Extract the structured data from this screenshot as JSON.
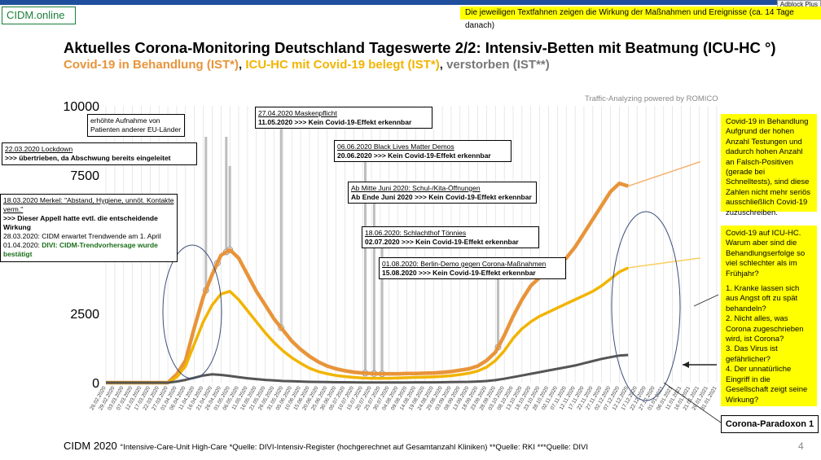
{
  "header": {
    "brand": "CIDM.online",
    "adblock_label": "Adblock Plus",
    "top_note": "Die jeweiligen Textfahnen zeigen die Wirkung der Maßnahmen und Ereignisse (ca. 14 Tage danach)",
    "title": "Aktuelles Corona-Monitoring Deutschland Tageswerte 2/2: Intensiv-Betten mit Beatmung (ICU-HC °)",
    "subtitle_1": "Covid-19 in Behandlung (IST*)",
    "subtitle_sep_1": ", ",
    "subtitle_2": "ICU-HC mit Covid-19 belegt (IST*)",
    "subtitle_sep_2": ", ",
    "subtitle_3": "verstorben (IST**)",
    "credit": "Traffic-Analyzing powered by ROMICO"
  },
  "annotations": {
    "lockdown": {
      "line1": "22.03.2020 Lockdown",
      "line2": ">>> übertrieben, da Abschwung bereits eingeleitet"
    },
    "eu_patients": {
      "text": "erhöhte Aufnahme von Patienten anderer EU-Länder"
    },
    "merkel": {
      "line1": "18.03.2020 Merkel: \"Abstand, Hygiene, unnöt. Kontakte verm.\"",
      "line2": ">>> Dieser Appell hatte evtl. die entscheidende Wirkung",
      "line3": "28.03.2020: CIDM erwartet Trendwende am 1. April",
      "line4_prefix": "01.04.2020: ",
      "line4_green": "DIVI: CIDM-Trendvorhersage wurde bestätigt"
    },
    "mask": {
      "line1": "27.04.2020 Maskenpflicht",
      "line2": "11.05.2020 >>> Kein Covid-19-Effekt erkennbar"
    },
    "blm": {
      "line1": "06.06.2020 Black Lives Matter Demos",
      "line2": "20.06.2020 >>> Kein Covid-19-Effekt erkennbar"
    },
    "school": {
      "line1": "Ab Mitte Juni 2020: Schul-/Kita-Öffnungen",
      "line2": "Ab Ende Juni 2020 >>> Kein Covid-19-Effekt erkennbar"
    },
    "toennies": {
      "line1": "18.06.2020: Schlachthof Tönnies",
      "line2": "02.07.2020 >>> Kein Covid-19-Effekt erkennbar"
    },
    "berlin": {
      "line1": "01.08.2020: Berlin-Demo gegen Corona-Maßnahmen",
      "line2": "15.08.2020 >>> Kein Covid-19-Effekt erkennbar"
    }
  },
  "side_notes": {
    "note1": "Covid-19 in Behandlung Aufgrund der hohen Anzahl Testungen und dadurch hohen Anzahl an Falsch-Positiven (gerade bei Schnelltests), sind diese Zahlen nicht mehr seriös ausschließlich Covid-19 zuzuschreiben.",
    "note2_lines": [
      "Covid-19 auf ICU-HC. Warum aber sind die Behandlungserfolge so viel schlechter als im Frühjahr?",
      "1. Kranke lassen sich aus Angst oft zu spät behandeln?",
      "2. Nicht alles, was Corona zugeschrieben wird, ist Corona?",
      "3. Das Virus ist gefährlicher?",
      "4. Der unnatürliche Eingriff in die Gesellschaft zeigt seine Wirkung?"
    ],
    "paradox": "Corona-Paradoxon 1"
  },
  "footer": {
    "left": "CIDM 2020",
    "sources": "°Intensive-Care-Unit High-Care  *Quelle: DIVI-Intensiv-Register (hochgerechnet auf Gesamtanzahl Kliniken)  **Quelle: RKI  ***Quelle: DIVI",
    "page": "4"
  },
  "colors": {
    "treatment": "#e8943a",
    "icu": "#f2b400",
    "deaths": "#555555",
    "grid": "#d9d9d9",
    "accent_yellow": "#ffff00"
  },
  "chart_data": {
    "type": "line",
    "ylim": [
      0,
      10000
    ],
    "yticks": [
      "0",
      "2500",
      "7500",
      "10000"
    ],
    "ytick_values": [
      0,
      2500,
      7500,
      10000
    ],
    "xlabels": [
      "26.02.2020",
      "29.02.2020",
      "03.03.2020",
      "07.03.2020",
      "12.03.2020",
      "17.03.2020",
      "22.03.2020",
      "27.03.2020",
      "01.04.2020",
      "06.04.2020",
      "11.04.2020",
      "16.04.2020",
      "21.04.2020",
      "26.04.2020",
      "01.05.2020",
      "06.05.2020",
      "11.05.2020",
      "16.05.2020",
      "21.05.2020",
      "26.05.2020",
      "31.05.2020",
      "05.06.2020",
      "10.06.2020",
      "15.06.2020",
      "20.06.2020",
      "25.06.2020",
      "30.06.2020",
      "05.07.2020",
      "10.07.2020",
      "15.07.2020",
      "20.07.2020",
      "25.07.2020",
      "30.07.2020",
      "04.08.2020",
      "09.08.2020",
      "14.08.2020",
      "19.08.2020",
      "24.08.2020",
      "29.08.2020",
      "03.09.2020",
      "08.09.2020",
      "13.09.2020",
      "18.09.2020",
      "23.09.2020",
      "28.09.2020",
      "03.10.2020",
      "08.10.2020",
      "13.10.2020",
      "18.10.2020",
      "23.10.2020",
      "28.10.2020",
      "02.11.2020",
      "07.11.2020",
      "12.11.2020",
      "17.11.2020",
      "22.11.2020",
      "27.11.2020",
      "02.12.2020",
      "07.12.2020",
      "12.12.2020",
      "17.12.2020",
      "22.12.2020",
      "27.12.2020",
      "01.01.2021",
      "06.01.2021",
      "11.01.2021",
      "16.01.2021",
      "21.01.2021",
      "26.01.2021",
      "31.01.2021"
    ],
    "series": [
      {
        "name": "Covid-19 in Behandlung (IST*)",
        "points": [
          [
            0,
            0
          ],
          [
            7,
            0
          ],
          [
            8,
            300
          ],
          [
            9,
            800
          ],
          [
            10,
            2000
          ],
          [
            11,
            3100
          ],
          [
            12,
            3900
          ],
          [
            13,
            4600
          ],
          [
            14,
            4800
          ],
          [
            15,
            4500
          ],
          [
            16,
            3900
          ],
          [
            17,
            3300
          ],
          [
            18,
            2800
          ],
          [
            19,
            2300
          ],
          [
            20,
            1900
          ],
          [
            21,
            1500
          ],
          [
            22,
            1200
          ],
          [
            23,
            950
          ],
          [
            24,
            750
          ],
          [
            25,
            600
          ],
          [
            26,
            500
          ],
          [
            27,
            430
          ],
          [
            28,
            380
          ],
          [
            29,
            350
          ],
          [
            30,
            330
          ],
          [
            31,
            320
          ],
          [
            32,
            320
          ],
          [
            33,
            320
          ],
          [
            34,
            330
          ],
          [
            35,
            330
          ],
          [
            36,
            340
          ],
          [
            37,
            350
          ],
          [
            38,
            370
          ],
          [
            39,
            400
          ],
          [
            40,
            450
          ],
          [
            41,
            500
          ],
          [
            42,
            600
          ],
          [
            43,
            800
          ],
          [
            44,
            1100
          ],
          [
            45,
            1700
          ],
          [
            46,
            2400
          ],
          [
            47,
            3000
          ],
          [
            48,
            3500
          ],
          [
            49,
            3800
          ],
          [
            50,
            4000
          ],
          [
            51,
            4200
          ],
          [
            52,
            4500
          ],
          [
            53,
            4900
          ],
          [
            54,
            5400
          ],
          [
            55,
            5900
          ],
          [
            56,
            6400
          ],
          [
            57,
            6900
          ],
          [
            58,
            7200
          ],
          [
            59,
            7100
          ]
        ]
      },
      {
        "name": "ICU-HC mit Covid-19 belegt (IST*)",
        "points": [
          [
            0,
            0
          ],
          [
            7,
            0
          ],
          [
            8,
            200
          ],
          [
            9,
            600
          ],
          [
            10,
            1400
          ],
          [
            11,
            2200
          ],
          [
            12,
            2800
          ],
          [
            13,
            3200
          ],
          [
            14,
            3300
          ],
          [
            15,
            3000
          ],
          [
            16,
            2600
          ],
          [
            17,
            2200
          ],
          [
            18,
            1800
          ],
          [
            19,
            1450
          ],
          [
            20,
            1150
          ],
          [
            21,
            900
          ],
          [
            22,
            700
          ],
          [
            23,
            520
          ],
          [
            24,
            400
          ],
          [
            25,
            320
          ],
          [
            26,
            260
          ],
          [
            27,
            220
          ],
          [
            28,
            190
          ],
          [
            29,
            170
          ],
          [
            30,
            160
          ],
          [
            31,
            160
          ],
          [
            32,
            160
          ],
          [
            33,
            170
          ],
          [
            34,
            180
          ],
          [
            35,
            190
          ],
          [
            36,
            200
          ],
          [
            37,
            210
          ],
          [
            38,
            230
          ],
          [
            39,
            250
          ],
          [
            40,
            290
          ],
          [
            41,
            340
          ],
          [
            42,
            420
          ],
          [
            43,
            560
          ],
          [
            44,
            800
          ],
          [
            45,
            1150
          ],
          [
            46,
            1600
          ],
          [
            47,
            1950
          ],
          [
            48,
            2200
          ],
          [
            49,
            2400
          ],
          [
            50,
            2550
          ],
          [
            51,
            2700
          ],
          [
            52,
            2850
          ],
          [
            53,
            3000
          ],
          [
            54,
            3150
          ],
          [
            55,
            3300
          ],
          [
            56,
            3500
          ],
          [
            57,
            3750
          ],
          [
            58,
            4000
          ],
          [
            59,
            4150
          ]
        ]
      },
      {
        "name": "verstorben (IST**)",
        "points": [
          [
            0,
            0
          ],
          [
            7,
            0
          ],
          [
            8,
            40
          ],
          [
            9,
            100
          ],
          [
            10,
            180
          ],
          [
            11,
            260
          ],
          [
            12,
            300
          ],
          [
            13,
            280
          ],
          [
            14,
            240
          ],
          [
            15,
            200
          ],
          [
            16,
            160
          ],
          [
            17,
            130
          ],
          [
            18,
            100
          ],
          [
            19,
            80
          ],
          [
            20,
            60
          ],
          [
            21,
            50
          ],
          [
            22,
            40
          ],
          [
            23,
            30
          ],
          [
            24,
            25
          ],
          [
            25,
            20
          ],
          [
            26,
            15
          ],
          [
            27,
            15
          ],
          [
            28,
            12
          ],
          [
            29,
            10
          ],
          [
            30,
            10
          ],
          [
            31,
            10
          ],
          [
            32,
            10
          ],
          [
            33,
            10
          ],
          [
            34,
            10
          ],
          [
            35,
            12
          ],
          [
            36,
            12
          ],
          [
            37,
            12
          ],
          [
            38,
            15
          ],
          [
            39,
            20
          ],
          [
            40,
            25
          ],
          [
            41,
            30
          ],
          [
            42,
            40
          ],
          [
            43,
            60
          ],
          [
            44,
            90
          ],
          [
            45,
            140
          ],
          [
            46,
            200
          ],
          [
            47,
            260
          ],
          [
            48,
            320
          ],
          [
            49,
            380
          ],
          [
            50,
            440
          ],
          [
            51,
            500
          ],
          [
            52,
            560
          ],
          [
            53,
            620
          ],
          [
            54,
            700
          ],
          [
            55,
            780
          ],
          [
            56,
            860
          ],
          [
            57,
            920
          ],
          [
            58,
            980
          ],
          [
            59,
            1000
          ]
        ]
      }
    ]
  }
}
